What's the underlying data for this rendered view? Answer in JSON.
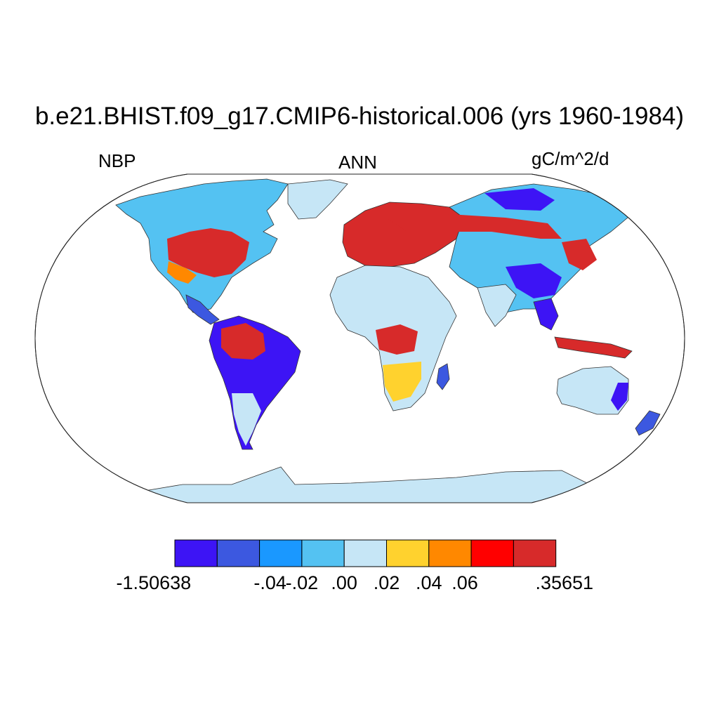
{
  "title": "b.e21.BHIST.f09_g17.CMIP6-historical.006 (yrs 1960-1984)",
  "variable": "NBP",
  "season": "ANN",
  "units": "gC/m^2/d",
  "colorbar": {
    "colors": [
      "#3d14f5",
      "#3c58e0",
      "#1a98ff",
      "#54c2f2",
      "#c6e6f6",
      "#ffd22e",
      "#ff8800",
      "#ff0000",
      "#d72a2a"
    ],
    "labels": [
      "-1.50638",
      "-.04",
      "-.02",
      ".00",
      ".02",
      ".04",
      ".06",
      ".35651"
    ],
    "boundary_index": [
      0,
      2,
      3,
      4,
      5,
      6,
      7,
      9
    ]
  },
  "map": {
    "projection": "robinson",
    "ocean_color": "#ffffff",
    "land_background": "#c6e6f6",
    "coastline_color": "#333333"
  }
}
